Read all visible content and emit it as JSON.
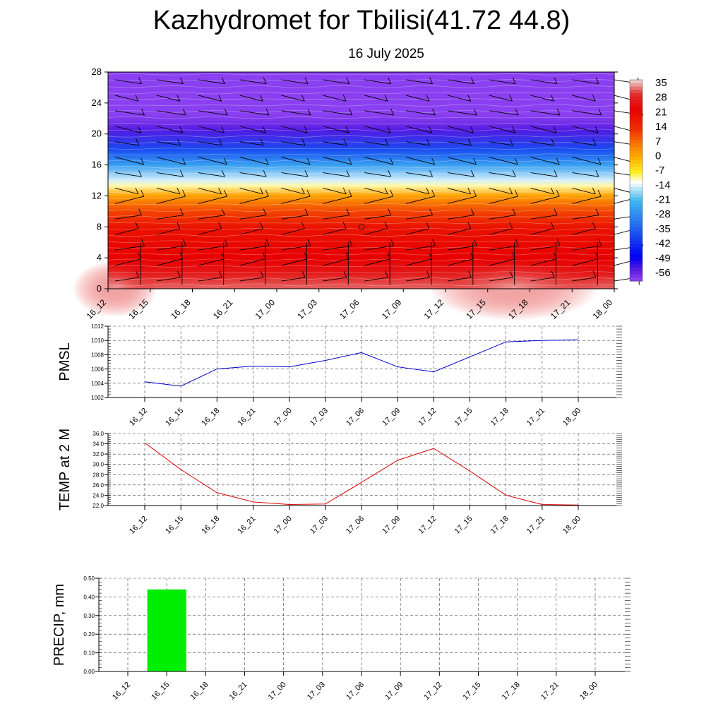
{
  "title": "Kazhydromet for Tbilisi(41.72 44.8)",
  "subtitle": "16 July 2025",
  "time_labels": [
    "16_12",
    "16_15",
    "16_18",
    "16_21",
    "17_00",
    "17_03",
    "17_06",
    "17_09",
    "17_12",
    "17_15",
    "17_18",
    "17_21",
    "18_00"
  ],
  "chart_data": [
    {
      "type": "heatmap",
      "title": "",
      "ylabel": "",
      "ylim": [
        0,
        28
      ],
      "yticks": [
        0,
        4,
        8,
        12,
        16,
        20,
        24,
        28
      ],
      "colorbar": {
        "labels": [
          "35",
          "28",
          "21",
          "14",
          "7",
          "0",
          "-7",
          "-14",
          "-21",
          "-28",
          "-35",
          "-42",
          "-49",
          "-56"
        ],
        "stops": [
          {
            "v": 38,
            "color": "#f0c8c8"
          },
          {
            "v": 32,
            "color": "#e03030"
          },
          {
            "v": 24,
            "color": "#e80000"
          },
          {
            "v": 14,
            "color": "#f03000"
          },
          {
            "v": 7,
            "color": "#f87800"
          },
          {
            "v": 0,
            "color": "#ffb000"
          },
          {
            "v": -7,
            "color": "#fff020"
          },
          {
            "v": -12,
            "color": "#ffffff"
          },
          {
            "v": -21,
            "color": "#40b8f0"
          },
          {
            "v": -35,
            "color": "#2060f0"
          },
          {
            "v": -49,
            "color": "#0000f0"
          },
          {
            "v": -56,
            "color": "#6020e0"
          },
          {
            "v": -60,
            "color": "#8a40f0"
          }
        ]
      },
      "temperature_profile": [
        {
          "h": 0,
          "t": 34
        },
        {
          "h": 2,
          "t": 28
        },
        {
          "h": 4,
          "t": 24
        },
        {
          "h": 8,
          "t": 20
        },
        {
          "h": 10,
          "t": 12
        },
        {
          "h": 12,
          "t": 2
        },
        {
          "h": 13.3,
          "t": -10
        },
        {
          "h": 14,
          "t": -14
        },
        {
          "h": 16,
          "t": -25
        },
        {
          "h": 18,
          "t": -38
        },
        {
          "h": 20.5,
          "t": -55
        },
        {
          "h": 21.5,
          "t": -58
        },
        {
          "h": 22.5,
          "t": -60
        },
        {
          "h": 28,
          "t": -60
        }
      ],
      "wind_levels": [
        1,
        3,
        5,
        7,
        9,
        11,
        13,
        15,
        17,
        19,
        21,
        23,
        25,
        27
      ]
    },
    {
      "type": "line",
      "ylabel": "PMSL",
      "ylim": [
        1002,
        1012
      ],
      "yticks": [
        "1002",
        "1004",
        "1006",
        "1008",
        "1010",
        "1012"
      ],
      "series": [
        {
          "values": [
            1004.2,
            1003.6,
            1006.0,
            1006.4,
            1006.3,
            1007.2,
            1008.3,
            1006.3,
            1005.6,
            1007.7,
            1009.8,
            1010.0,
            1010.1
          ]
        }
      ],
      "color": "#0000cc"
    },
    {
      "type": "line",
      "ylabel": "TEMP at 2 M",
      "ylim": [
        22,
        36
      ],
      "yticks": [
        "22.0",
        "24.0",
        "26.0",
        "28.0",
        "30.0",
        "32.0",
        "34.0",
        "36.0"
      ],
      "series": [
        {
          "values": [
            34.2,
            29.0,
            24.5,
            22.7,
            22.2,
            22.3,
            26.5,
            30.8,
            33.1,
            28.7,
            24.0,
            22.2,
            22.1
          ]
        }
      ],
      "color": "#dd0000"
    },
    {
      "type": "bar",
      "ylabel": "PRECIP, mm",
      "ylim": [
        0,
        0.5
      ],
      "yticks": [
        "0.00",
        "0.10",
        "0.20",
        "0.30",
        "0.40",
        "0.50"
      ],
      "values": [
        0,
        0.44,
        0,
        0,
        0,
        0,
        0,
        0,
        0,
        0,
        0,
        0,
        0
      ],
      "color": "#00ee00"
    }
  ]
}
